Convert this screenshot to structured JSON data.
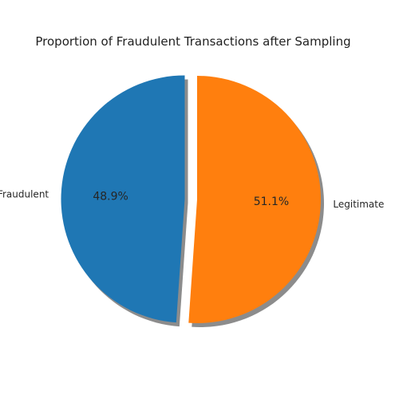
{
  "chart_data": {
    "type": "pie",
    "title": "Proportion of Fraudulent Transactions after Sampling",
    "slices": [
      {
        "label": "Fraudulent",
        "value": 48.9,
        "pct_label": "48.9%",
        "color": "#1f77b4",
        "exploded": true
      },
      {
        "label": "Legitimate",
        "value": 51.1,
        "pct_label": "51.1%",
        "color": "#ff7f0e",
        "exploded": false
      }
    ],
    "start_angle_deg": 90,
    "shadow": true,
    "shadow_color": "#8c8c8c",
    "legend": "none"
  }
}
